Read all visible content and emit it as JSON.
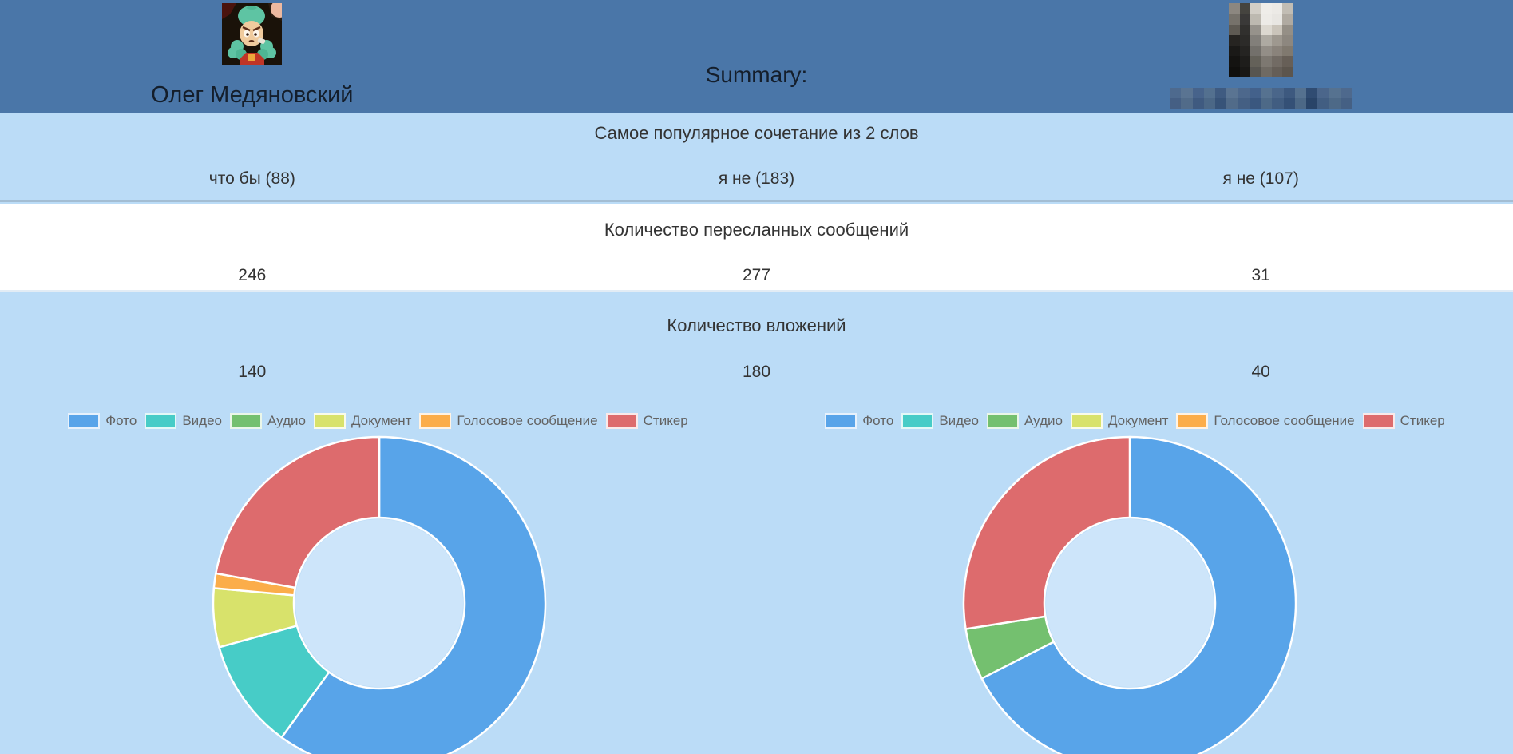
{
  "header": {
    "title": "Summary:",
    "left_user": {
      "name": "Олег Медяновский",
      "avatar": "cartoon-character-green-hair"
    },
    "right_user": {
      "avatar": "pixelated-censored-photo",
      "name": "pixelated-censored-text",
      "avatar_mosaic_rows": [
        [
          "#8c8780",
          "#45443f",
          "#d2cec6",
          "#efede9",
          "#eceae6",
          "#c2bdb4"
        ],
        [
          "#76726b",
          "#3a3938",
          "#bdb9b0",
          "#edebe7",
          "#e8e6e2",
          "#b0aaa1"
        ],
        [
          "#5e5a53",
          "#31302e",
          "#96928b",
          "#dcd8d0",
          "#cac4ba",
          "#958f86"
        ],
        [
          "#262421",
          "#2c2b29",
          "#827f7a",
          "#aeaaa2",
          "#9e988f",
          "#8d877f"
        ],
        [
          "#1a1917",
          "#252422",
          "#73706b",
          "#938e87",
          "#8a837b",
          "#80796f"
        ],
        [
          "#141311",
          "#1e1d1b",
          "#646159",
          "#7d7871",
          "#726b64",
          "#675f57"
        ],
        [
          "#100f0d",
          "#191816",
          "#575550",
          "#6f6a63",
          "#655e57",
          "#5c554d"
        ]
      ],
      "name_mosaic_rows": [
        [
          "#4e6a8e",
          "#5a7492",
          "#47638b",
          "#53708f",
          "#3f5b81",
          "#5a7492",
          "#4d688c",
          "#43618b",
          "#567290",
          "#4a668a",
          "#3d597f",
          "#55718f",
          "#304c72",
          "#4b668b",
          "#567290",
          "#4e698d"
        ],
        [
          "#455f84",
          "#516b89",
          "#3f5a80",
          "#4b6786",
          "#375378",
          "#516b89",
          "#445f83",
          "#3a577f",
          "#4d6987",
          "#415d81",
          "#345076",
          "#4c6886",
          "#294468",
          "#425e82",
          "#4d6987",
          "#456084"
        ]
      ]
    }
  },
  "sections": [
    {
      "title": "Самое популярное сочетание из 2 слов",
      "values": [
        "что бы (88)",
        "я не (183)",
        "я не (107)"
      ]
    },
    {
      "title": "Количество пересланных сообщений",
      "values": [
        "246",
        "277",
        "31"
      ]
    },
    {
      "title": "Количество вложений",
      "values": [
        "140",
        "180",
        "40"
      ]
    }
  ],
  "chart_data": [
    {
      "type": "donut",
      "title": "Количество вложений — левый пользователь",
      "categories": [
        "Фото",
        "Видео",
        "Аудио",
        "Документ",
        "Голосовое сообщение",
        "Стикер"
      ],
      "values": [
        84,
        15,
        0,
        8,
        2,
        31
      ],
      "total": 140,
      "colors": [
        "#58a4e9",
        "#47ccc7",
        "#74c06f",
        "#d8e26b",
        "#fbad4a",
        "#dd6b6d"
      ],
      "legend_position": "top",
      "start_angle_deg": 0,
      "direction": "clockwise"
    },
    {
      "type": "donut",
      "title": "Количество вложений — правый пользователь",
      "categories": [
        "Фото",
        "Видео",
        "Аудио",
        "Документ",
        "Голосовое сообщение",
        "Стикер"
      ],
      "values": [
        27,
        0,
        2,
        0,
        0,
        11
      ],
      "total": 40,
      "colors": [
        "#58a4e9",
        "#47ccc7",
        "#74c06f",
        "#d8e26b",
        "#fbad4a",
        "#dd6b6d"
      ],
      "legend_position": "top",
      "start_angle_deg": 0,
      "direction": "clockwise"
    }
  ],
  "colors": {
    "header_bg": "#4a76a8",
    "section_bg_blue": "#bbdcf7",
    "section_bg_white": "#ffffff",
    "donut_hole": "#cde5fa",
    "donut_stroke": "#ffffff",
    "header_text": "#141e2b",
    "body_text": "#333333",
    "legend_text": "#636363"
  }
}
